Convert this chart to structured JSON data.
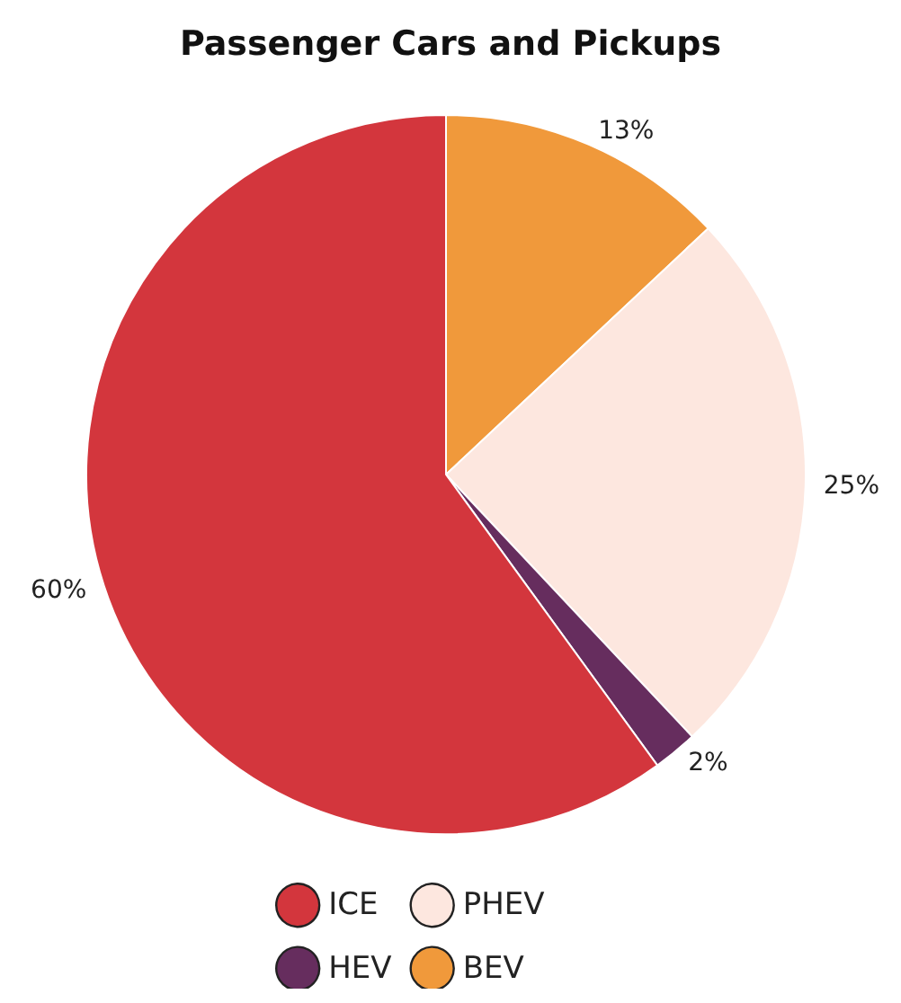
{
  "chart_data": {
    "type": "pie",
    "title": "Passenger Cars and Pickups",
    "categories": [
      "BEV",
      "PHEV",
      "HEV",
      "ICE"
    ],
    "values": [
      13,
      25,
      2,
      60
    ],
    "colors": [
      "#f0993b",
      "#fde7df",
      "#662d5e",
      "#d3363d"
    ],
    "value_labels": [
      "13%",
      "25%",
      "2%",
      "60%"
    ],
    "legend": "bottom"
  }
}
